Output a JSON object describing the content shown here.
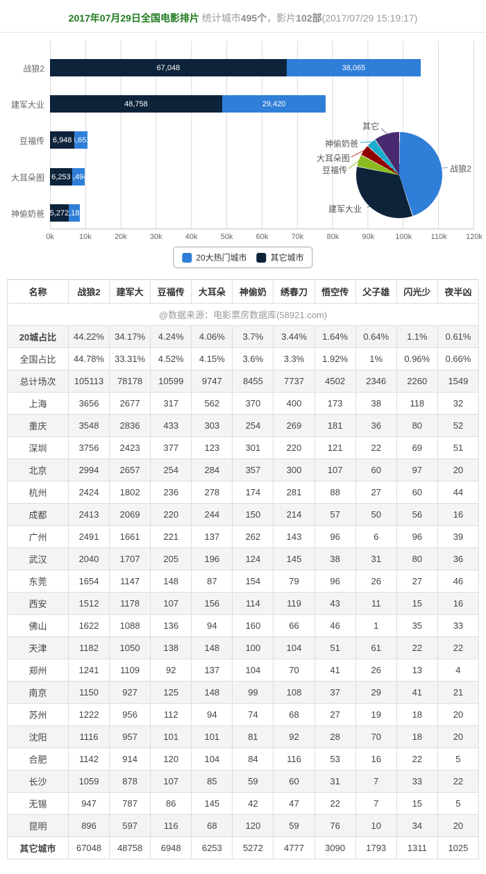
{
  "header": {
    "title": "2017年07月29日全国电影排片",
    "subtitle_prefix": "统计城市",
    "cities_count": "495个",
    "subtitle_middle": "，影片",
    "films_count": "102部",
    "subtitle_suffix": "(2017/07/29 15:19:17)"
  },
  "colors": {
    "hot20_blue": "#2f7ed8",
    "other_navy": "#0d233a",
    "pie_green": "#8bbc21",
    "pie_red": "#910000",
    "pie_cyan": "#1aadce",
    "pie_purple": "#492970",
    "title_green": "#1e7a1e"
  },
  "legend": {
    "items": [
      {
        "label": "20大热门城市",
        "color": "#2f7ed8"
      },
      {
        "label": "其它城市",
        "color": "#0d233a"
      }
    ]
  },
  "chart_data": [
    {
      "type": "bar",
      "orientation": "horizontal",
      "stacked": true,
      "categories": [
        "战狼2",
        "建军大业",
        "豆福传",
        "大耳朵图",
        "神偷奶爸"
      ],
      "series": [
        {
          "name": "其它城市",
          "color": "#0d233a",
          "values": [
            67048,
            48758,
            6948,
            6253,
            5272
          ]
        },
        {
          "name": "20大热门城市",
          "color": "#2f7ed8",
          "values": [
            38065,
            29420,
            3651,
            3494,
            3183
          ]
        }
      ],
      "xlim": [
        0,
        120000
      ],
      "tick_labels": [
        "0k",
        "10k",
        "20k",
        "30k",
        "40k",
        "50k",
        "60k",
        "70k",
        "80k",
        "90k",
        "100k",
        "110k",
        "120k"
      ],
      "grid": true,
      "legend_position": "bottom"
    },
    {
      "type": "pie",
      "labels": [
        "战狼2",
        "建军大业",
        "豆福传",
        "大耳朵图",
        "神偷奶爸",
        "其它"
      ],
      "values": [
        44.78,
        33.31,
        4.52,
        4.15,
        3.6,
        9.64
      ],
      "unit": "%",
      "colors": [
        "#2f7ed8",
        "#0d233a",
        "#8bbc21",
        "#910000",
        "#1aadce",
        "#492970"
      ]
    }
  ],
  "table": {
    "header": [
      "名称",
      "战狼2",
      "建军大",
      "豆福传",
      "大耳朵",
      "神偷奶",
      "绣春刀",
      "悟空传",
      "父子雄",
      "闪光少",
      "夜半凶"
    ],
    "source": "@数据来源：电影票房数据库(58921.com)",
    "rows": [
      {
        "label": "20城占比",
        "bold": true,
        "values": [
          "44.22%",
          "34.17%",
          "4.24%",
          "4.06%",
          "3.7%",
          "3.44%",
          "1.64%",
          "0.64%",
          "1.1%",
          "0.61%"
        ]
      },
      {
        "label": "全国占比",
        "bold": false,
        "values": [
          "44.78%",
          "33.31%",
          "4.52%",
          "4.15%",
          "3.6%",
          "3.3%",
          "1.92%",
          "1%",
          "0.96%",
          "0.66%"
        ]
      },
      {
        "label": "总计场次",
        "bold": false,
        "values": [
          "105113",
          "78178",
          "10599",
          "9747",
          "8455",
          "7737",
          "4502",
          "2346",
          "2260",
          "1549"
        ]
      },
      {
        "label": "上海",
        "bold": false,
        "values": [
          "3656",
          "2677",
          "317",
          "562",
          "370",
          "400",
          "173",
          "38",
          "118",
          "32"
        ]
      },
      {
        "label": "重庆",
        "bold": false,
        "values": [
          "3548",
          "2836",
          "433",
          "303",
          "254",
          "269",
          "181",
          "36",
          "80",
          "52"
        ]
      },
      {
        "label": "深圳",
        "bold": false,
        "values": [
          "3756",
          "2423",
          "377",
          "123",
          "301",
          "220",
          "121",
          "22",
          "69",
          "51"
        ]
      },
      {
        "label": "北京",
        "bold": false,
        "values": [
          "2994",
          "2657",
          "254",
          "284",
          "357",
          "300",
          "107",
          "60",
          "97",
          "20"
        ]
      },
      {
        "label": "杭州",
        "bold": false,
        "values": [
          "2424",
          "1802",
          "236",
          "278",
          "174",
          "281",
          "88",
          "27",
          "60",
          "44"
        ]
      },
      {
        "label": "成都",
        "bold": false,
        "values": [
          "2413",
          "2069",
          "220",
          "244",
          "150",
          "214",
          "57",
          "50",
          "56",
          "16"
        ]
      },
      {
        "label": "广州",
        "bold": false,
        "values": [
          "2491",
          "1661",
          "221",
          "137",
          "262",
          "143",
          "96",
          "6",
          "96",
          "39"
        ]
      },
      {
        "label": "武汉",
        "bold": false,
        "values": [
          "2040",
          "1707",
          "205",
          "196",
          "124",
          "145",
          "38",
          "31",
          "80",
          "36"
        ]
      },
      {
        "label": "东莞",
        "bold": false,
        "values": [
          "1654",
          "1147",
          "148",
          "87",
          "154",
          "79",
          "96",
          "26",
          "27",
          "46"
        ]
      },
      {
        "label": "西安",
        "bold": false,
        "values": [
          "1512",
          "1178",
          "107",
          "156",
          "114",
          "119",
          "43",
          "11",
          "15",
          "16"
        ]
      },
      {
        "label": "佛山",
        "bold": false,
        "values": [
          "1622",
          "1088",
          "136",
          "94",
          "160",
          "66",
          "46",
          "1",
          "35",
          "33"
        ]
      },
      {
        "label": "天津",
        "bold": false,
        "values": [
          "1182",
          "1050",
          "138",
          "148",
          "100",
          "104",
          "51",
          "61",
          "22",
          "22"
        ]
      },
      {
        "label": "郑州",
        "bold": false,
        "values": [
          "1241",
          "1109",
          "92",
          "137",
          "104",
          "70",
          "41",
          "26",
          "13",
          "4"
        ]
      },
      {
        "label": "南京",
        "bold": false,
        "values": [
          "1150",
          "927",
          "125",
          "148",
          "99",
          "108",
          "37",
          "29",
          "41",
          "21"
        ]
      },
      {
        "label": "苏州",
        "bold": false,
        "values": [
          "1222",
          "956",
          "112",
          "94",
          "74",
          "68",
          "27",
          "19",
          "18",
          "20"
        ]
      },
      {
        "label": "沈阳",
        "bold": false,
        "values": [
          "1116",
          "957",
          "101",
          "101",
          "81",
          "92",
          "28",
          "70",
          "18",
          "20"
        ]
      },
      {
        "label": "合肥",
        "bold": false,
        "values": [
          "1142",
          "914",
          "120",
          "104",
          "84",
          "116",
          "53",
          "16",
          "22",
          "5"
        ]
      },
      {
        "label": "长沙",
        "bold": false,
        "values": [
          "1059",
          "878",
          "107",
          "85",
          "59",
          "60",
          "31",
          "7",
          "33",
          "22"
        ]
      },
      {
        "label": "无锡",
        "bold": false,
        "values": [
          "947",
          "787",
          "86",
          "145",
          "42",
          "47",
          "22",
          "7",
          "15",
          "5"
        ]
      },
      {
        "label": "昆明",
        "bold": false,
        "values": [
          "896",
          "597",
          "116",
          "68",
          "120",
          "59",
          "76",
          "10",
          "34",
          "20"
        ]
      },
      {
        "label": "其它城市",
        "bold": true,
        "values": [
          "67048",
          "48758",
          "6948",
          "6253",
          "5272",
          "4777",
          "3090",
          "1793",
          "1311",
          "1025"
        ]
      }
    ]
  }
}
